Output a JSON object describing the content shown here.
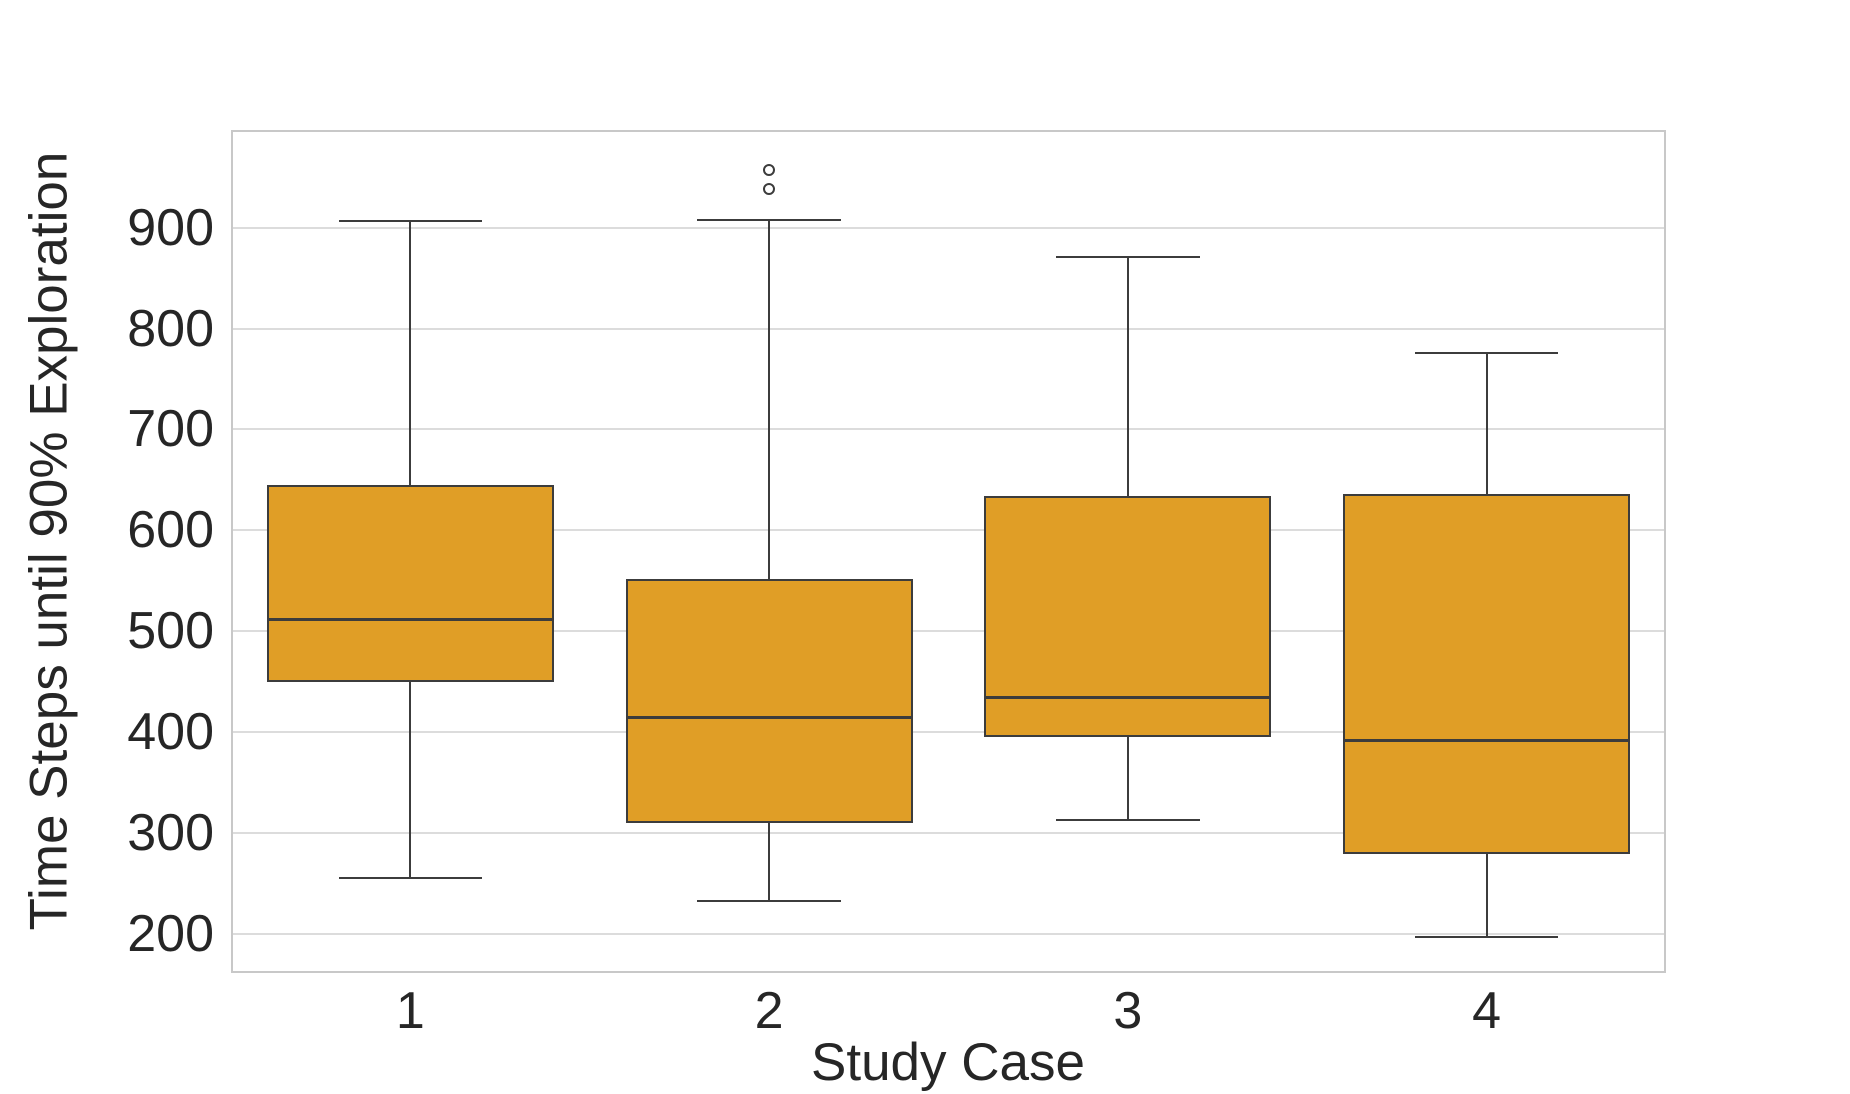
{
  "figure": {
    "background_color": "#ffffff",
    "text_color": "#262626"
  },
  "chart_data": {
    "type": "boxplot",
    "title": "",
    "xlabel": "Study Case",
    "ylabel": "Time Steps until 90% Exploration",
    "categories": [
      "1",
      "2",
      "3",
      "4"
    ],
    "y_ticks": [
      200,
      300,
      400,
      500,
      600,
      700,
      800,
      900
    ],
    "ylim": [
      161,
      997
    ],
    "grid": "horizontal gridlines only, light gray",
    "legend": "none",
    "colors": {
      "box_fill": "#e09e26",
      "box_edge": "#3c3c3c",
      "whisker": "#3c3c3c",
      "median": "#3c3c3c",
      "outlier_edge": "#3c3c3c",
      "gridline": "#dcdcdc",
      "spine": "#c8c8c8"
    },
    "boxes": [
      {
        "category": "1",
        "whisker_low": 255,
        "q1": 450,
        "median": 512,
        "q3": 645,
        "whisker_high": 907,
        "outliers": []
      },
      {
        "category": "2",
        "whisker_low": 232,
        "q1": 310,
        "median": 414,
        "q3": 552,
        "whisker_high": 908,
        "outliers": [
          938,
          957
        ]
      },
      {
        "category": "3",
        "whisker_low": 313,
        "q1": 395,
        "median": 434,
        "q3": 634,
        "whisker_high": 871,
        "outliers": []
      },
      {
        "category": "4",
        "whisker_low": 197,
        "q1": 279,
        "median": 392,
        "q3": 636,
        "whisker_high": 776,
        "outliers": []
      }
    ]
  }
}
